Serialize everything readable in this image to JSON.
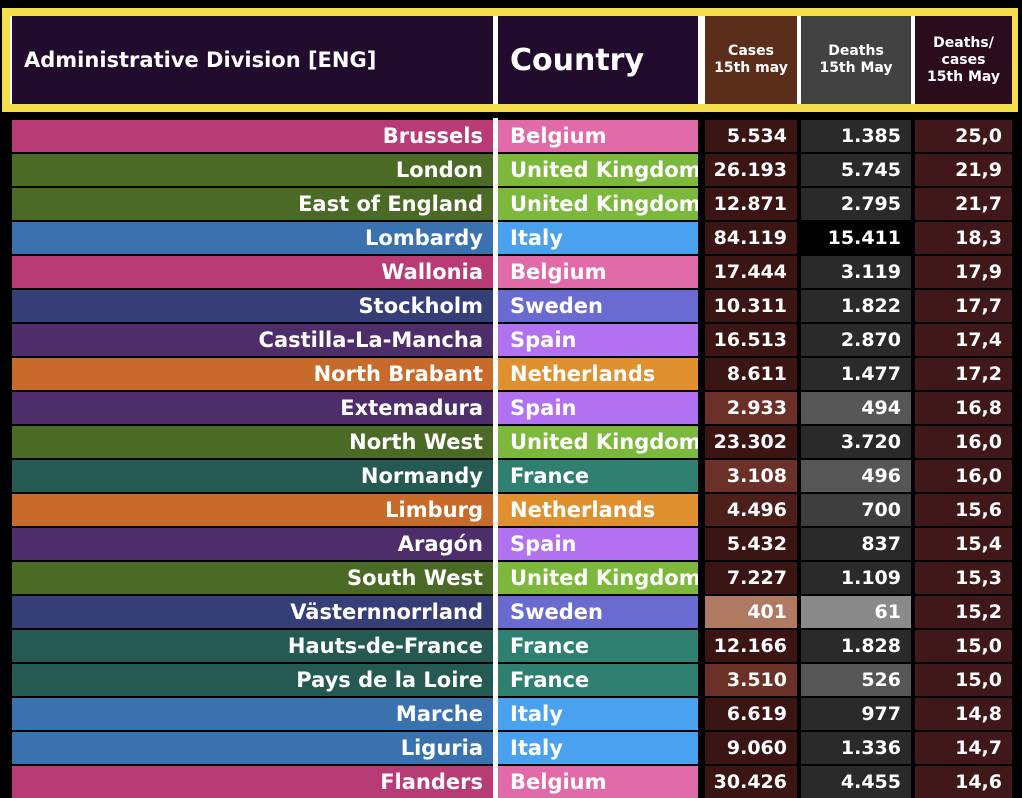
{
  "table": {
    "headers": [
      [
        "Administrative Division [ENG]"
      ],
      [
        "Country"
      ],
      [
        "Cases",
        "15th may"
      ],
      [
        "Deaths",
        "15th May"
      ],
      [
        "Deaths/",
        "cases",
        "15th May"
      ]
    ],
    "rows": [
      [
        "Brussels",
        "Belgium",
        "5.534",
        "1.385",
        "25,0"
      ],
      [
        "London",
        "United Kingdom",
        "26.193",
        "5.745",
        "21,9"
      ],
      [
        "East of England",
        "United Kingdom",
        "12.871",
        "2.795",
        "21,7"
      ],
      [
        "Lombardy",
        "Italy",
        "84.119",
        "15.411",
        "18,3"
      ],
      [
        "Wallonia",
        "Belgium",
        "17.444",
        "3.119",
        "17,9"
      ],
      [
        "Stockholm",
        "Sweden",
        "10.311",
        "1.822",
        "17,7"
      ],
      [
        "Castilla-La-Mancha",
        "Spain",
        "16.513",
        "2.870",
        "17,4"
      ],
      [
        "North Brabant",
        "Netherlands",
        "8.611",
        "1.477",
        "17,2"
      ],
      [
        "Extemadura",
        "Spain",
        "2.933",
        "494",
        "16,8"
      ],
      [
        "North West",
        "United Kingdom",
        "23.302",
        "3.720",
        "16,0"
      ],
      [
        "Normandy",
        "France",
        "3.108",
        "496",
        "16,0"
      ],
      [
        "Limburg",
        "Netherlands",
        "4.496",
        "700",
        "15,6"
      ],
      [
        "Aragón",
        "Spain",
        "5.432",
        "837",
        "15,4"
      ],
      [
        "South West",
        "United Kingdom",
        "7.227",
        "1.109",
        "15,3"
      ],
      [
        "Västernnorrland",
        "Sweden",
        "401",
        "61",
        "15,2"
      ],
      [
        "Hauts-de-France",
        "France",
        "12.166",
        "1.828",
        "15,0"
      ],
      [
        "Pays de la Loire",
        "France",
        "3.510",
        "526",
        "15,0"
      ],
      [
        "Marche",
        "Italy",
        "6.619",
        "977",
        "14,8"
      ],
      [
        "Liguria",
        "Italy",
        "9.060",
        "1.336",
        "14,7"
      ],
      [
        "Flanders",
        "Belgium",
        "30.426",
        "4.455",
        "14,6"
      ]
    ]
  }
}
